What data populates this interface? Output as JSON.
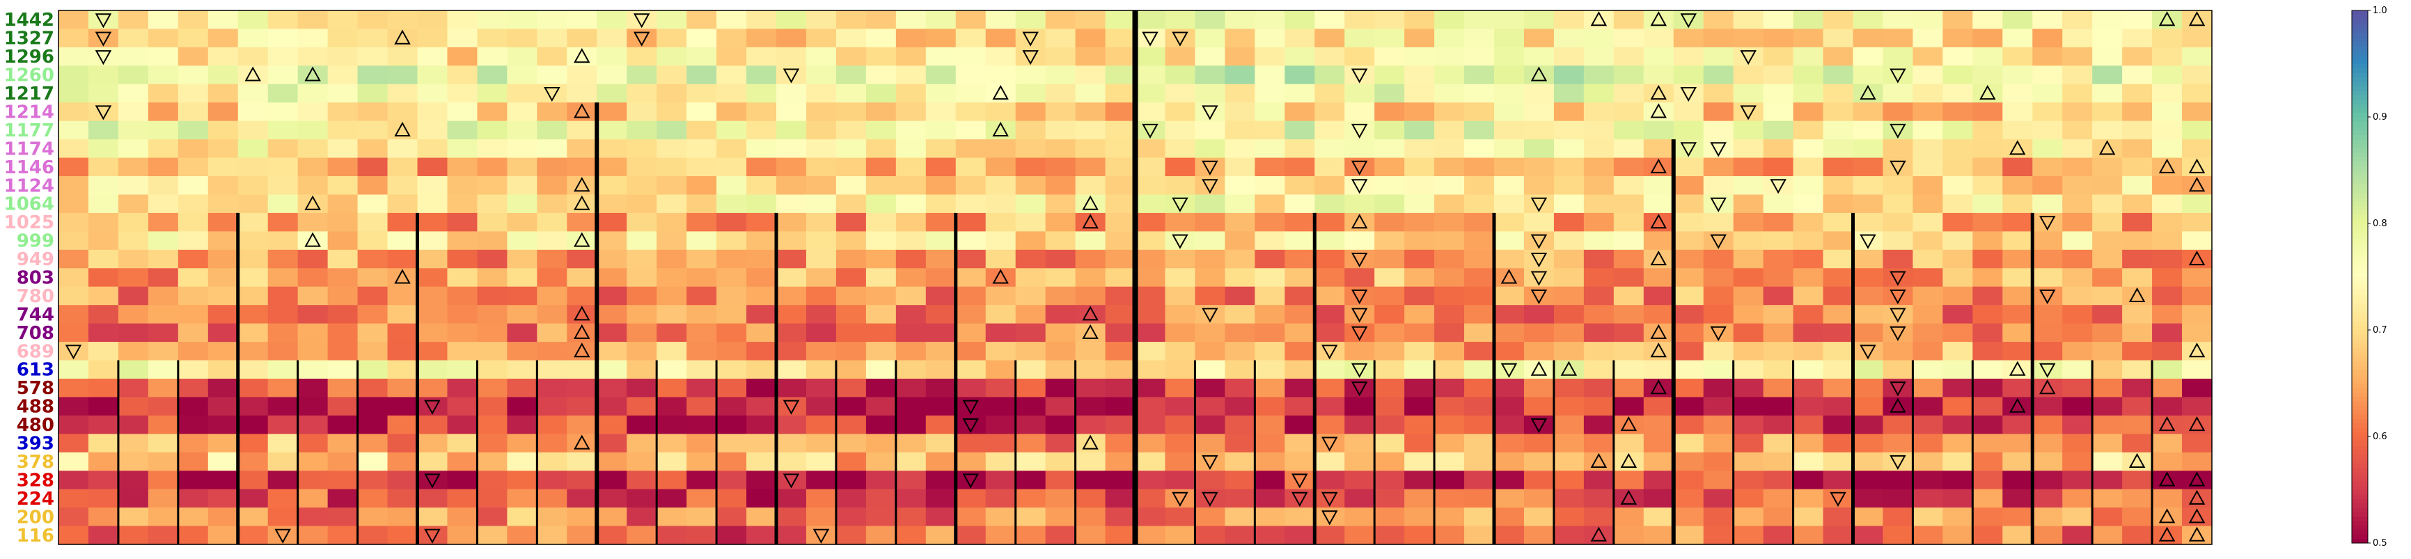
{
  "chart_data": {
    "type": "heatmap",
    "title": "",
    "xlabel": "",
    "ylabel": "",
    "n_columns": 72,
    "rows": [
      {
        "label": "1442",
        "color": "#1a7a1a"
      },
      {
        "label": "1327",
        "color": "#1a7a1a"
      },
      {
        "label": "1296",
        "color": "#1a7a1a"
      },
      {
        "label": "1260",
        "color": "#90ee90"
      },
      {
        "label": "1217",
        "color": "#1a7a1a"
      },
      {
        "label": "1214",
        "color": "#da70d6"
      },
      {
        "label": "1177",
        "color": "#90ee90"
      },
      {
        "label": "1174",
        "color": "#da70d6"
      },
      {
        "label": "1146",
        "color": "#da70d6"
      },
      {
        "label": "1124",
        "color": "#da70d6"
      },
      {
        "label": "1064",
        "color": "#90ee90"
      },
      {
        "label": "1025",
        "color": "#ffb6c1"
      },
      {
        "label": "999",
        "color": "#90ee90"
      },
      {
        "label": "949",
        "color": "#ffb6c1"
      },
      {
        "label": "803",
        "color": "#800080"
      },
      {
        "label": "780",
        "color": "#ffb6c1"
      },
      {
        "label": "744",
        "color": "#800080"
      },
      {
        "label": "708",
        "color": "#800080"
      },
      {
        "label": "689",
        "color": "#ffb6c1"
      },
      {
        "label": "613",
        "color": "#0000cd"
      },
      {
        "label": "578",
        "color": "#8b0000"
      },
      {
        "label": "488",
        "color": "#8b0000"
      },
      {
        "label": "480",
        "color": "#8b0000"
      },
      {
        "label": "393",
        "color": "#0000cd"
      },
      {
        "label": "378",
        "color": "#f0c030"
      },
      {
        "label": "328",
        "color": "#e00000"
      },
      {
        "label": "224",
        "color": "#e00000"
      },
      {
        "label": "200",
        "color": "#f0c030"
      },
      {
        "label": "116",
        "color": "#f0c030"
      }
    ],
    "value_range": [
      0.5,
      1.0
    ],
    "colormap": "Spectral",
    "colorbar": {
      "vmin": 0.5,
      "vmax": 1.0,
      "ticks": [
        "0.5",
        "0.6",
        "0.7",
        "0.8",
        "0.9",
        "1.0"
      ]
    },
    "block_separator_columns": [
      0,
      18,
      36,
      54
    ],
    "markers": {
      "up": "higher (triangle up)",
      "down": "lower (triangle down)"
    }
  }
}
